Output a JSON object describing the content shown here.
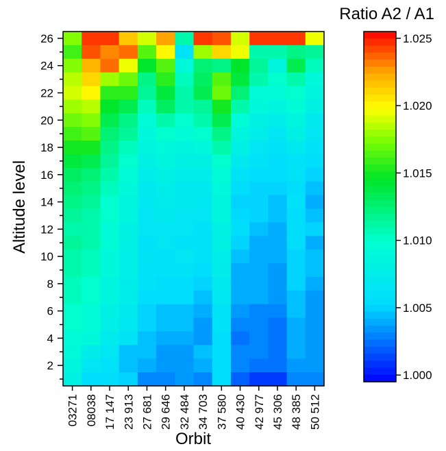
{
  "chart_data": {
    "type": "heatmap",
    "xlabel": "Orbit",
    "ylabel": "Altitude level",
    "colorbar_title": "Ratio A2 / A1",
    "x_categories": [
      "03271",
      "08038",
      "17 147",
      "23 913",
      "27 681",
      "29 646",
      "32 484",
      "34 703",
      "37 580",
      "40 430",
      "42 977",
      "45 306",
      "48 385",
      "50 512"
    ],
    "y_ticks": [
      2,
      4,
      6,
      8,
      10,
      12,
      14,
      16,
      18,
      20,
      22,
      24,
      26
    ],
    "y_range": [
      1,
      26
    ],
    "colorbar": {
      "min": 0.9995,
      "max": 1.0255,
      "ticks": [
        1.0,
        1.005,
        1.01,
        1.015,
        1.02,
        1.025
      ],
      "tick_labels": [
        "1.000",
        "1.005",
        "1.010",
        "1.015",
        "1.020",
        "1.025"
      ]
    },
    "rows_top_to_bottom": [
      [
        1.0175,
        1.0245,
        1.0245,
        1.0215,
        1.019,
        1.0225,
        1.011,
        1.0245,
        1.024,
        1.019,
        1.0245,
        1.0245,
        1.0245,
        1.0195
      ],
      [
        1.016,
        1.024,
        1.023,
        1.0235,
        1.0165,
        1.02,
        1.006,
        1.018,
        1.021,
        1.0195,
        1.011,
        1.011,
        1.012,
        1.0115
      ],
      [
        1.0175,
        1.022,
        1.0235,
        1.0195,
        1.0145,
        1.0165,
        1.009,
        1.0125,
        1.012,
        1.0145,
        1.0115,
        1.0085,
        1.0135,
        1.0105
      ],
      [
        1.0185,
        1.021,
        1.018,
        1.017,
        1.012,
        1.0155,
        1.0105,
        1.013,
        1.0165,
        1.014,
        1.011,
        1.01,
        1.011,
        1.009
      ],
      [
        1.019,
        1.02,
        1.0155,
        1.0155,
        1.0115,
        1.014,
        1.011,
        1.0135,
        1.017,
        1.0125,
        1.0095,
        1.0095,
        1.01,
        1.0085
      ],
      [
        1.018,
        1.0185,
        1.0145,
        1.0135,
        1.0105,
        1.013,
        1.011,
        1.0115,
        1.015,
        1.011,
        1.009,
        1.0085,
        1.0095,
        1.008
      ],
      [
        1.017,
        1.0175,
        1.0135,
        1.012,
        1.0095,
        1.011,
        1.01,
        1.011,
        1.0135,
        1.0095,
        1.008,
        1.0075,
        1.0085,
        1.007
      ],
      [
        1.016,
        1.0165,
        1.0125,
        1.0115,
        1.009,
        1.01,
        1.0095,
        1.01,
        1.012,
        1.0085,
        1.0075,
        1.0065,
        1.008,
        1.0065
      ],
      [
        1.015,
        1.015,
        1.012,
        1.0105,
        1.0085,
        1.009,
        1.0085,
        1.009,
        1.011,
        1.008,
        1.0065,
        1.006,
        1.007,
        1.006
      ],
      [
        1.014,
        1.0135,
        1.0115,
        1.01,
        1.008,
        1.0085,
        1.008,
        1.008,
        1.01,
        1.007,
        1.006,
        1.0055,
        1.006,
        1.0055
      ],
      [
        1.013,
        1.0125,
        1.011,
        1.0095,
        1.0075,
        1.008,
        1.0075,
        1.0075,
        1.0095,
        1.006,
        1.0055,
        1.0055,
        1.006,
        1.005
      ],
      [
        1.0125,
        1.012,
        1.0105,
        1.009,
        1.007,
        1.0075,
        1.007,
        1.007,
        1.009,
        1.0055,
        1.005,
        1.005,
        1.0055,
        1.0045
      ],
      [
        1.012,
        1.0115,
        1.01,
        1.0085,
        1.0068,
        1.0072,
        1.007,
        1.0068,
        1.0085,
        1.005,
        1.005,
        1.0045,
        1.006,
        1.004
      ],
      [
        1.0115,
        1.011,
        1.01,
        1.0085,
        1.0065,
        1.007,
        1.0065,
        1.0065,
        1.0085,
        1.0052,
        1.005,
        1.0045,
        1.0055,
        1.0045
      ],
      [
        1.011,
        1.011,
        1.0095,
        1.008,
        1.0065,
        1.0065,
        1.0065,
        1.006,
        1.008,
        1.0055,
        1.0045,
        1.004,
        1.0055,
        1.005
      ],
      [
        1.0115,
        1.011,
        1.0095,
        1.008,
        1.006,
        1.0065,
        1.006,
        1.006,
        1.008,
        1.005,
        1.004,
        1.004,
        1.0055,
        1.004
      ],
      [
        1.011,
        1.0105,
        1.009,
        1.0078,
        1.0062,
        1.006,
        1.0065,
        1.006,
        1.0075,
        1.0045,
        1.004,
        1.004,
        1.005,
        1.0045
      ],
      [
        1.011,
        1.0105,
        1.009,
        1.0078,
        1.006,
        1.006,
        1.006,
        1.0055,
        1.0075,
        1.004,
        1.004,
        1.0035,
        1.005,
        1.0045
      ],
      [
        1.0105,
        1.01,
        1.0085,
        1.0075,
        1.006,
        1.0055,
        1.0055,
        1.005,
        1.007,
        1.004,
        1.004,
        1.0035,
        1.005,
        1.004
      ],
      [
        1.0105,
        1.01,
        1.0085,
        1.0075,
        1.0055,
        1.0055,
        1.0055,
        1.0045,
        1.0068,
        1.004,
        1.004,
        1.0035,
        1.0045,
        1.0035
      ],
      [
        1.01,
        1.0095,
        1.008,
        1.007,
        1.005,
        1.0045,
        1.0045,
        1.004,
        1.006,
        1.0035,
        1.003,
        1.003,
        1.0045,
        1.0035
      ],
      [
        1.01,
        1.0095,
        1.0078,
        1.0068,
        1.005,
        1.0045,
        1.0045,
        1.0035,
        1.006,
        1.003,
        1.003,
        1.0025,
        1.004,
        1.0035
      ],
      [
        1.0095,
        1.009,
        1.0072,
        1.0062,
        1.0045,
        1.004,
        1.004,
        1.0035,
        1.0055,
        1.0025,
        1.003,
        1.0025,
        1.004,
        1.0035
      ],
      [
        1.009,
        1.0075,
        1.0065,
        1.0045,
        1.0045,
        1.0035,
        1.0035,
        1.0045,
        1.0055,
        1.003,
        1.003,
        1.0025,
        1.004,
        1.0035
      ],
      [
        1.0085,
        1.0065,
        1.006,
        1.0045,
        1.004,
        1.0035,
        1.0035,
        1.004,
        1.0055,
        1.003,
        1.0025,
        1.0025,
        1.0035,
        1.0035
      ],
      [
        1.008,
        1.0055,
        1.0055,
        1.005,
        1.003,
        1.003,
        1.0035,
        1.003,
        1.0055,
        1.002,
        1.001,
        1.001,
        1.003,
        1.003
      ]
    ]
  }
}
